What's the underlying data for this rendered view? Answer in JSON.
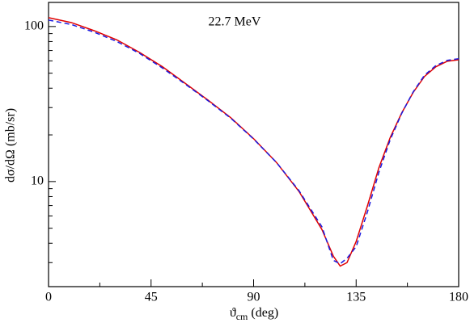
{
  "chart_data": {
    "type": "line",
    "annotation": "22.7 MeV",
    "xlabel": {
      "symbol": "ϑ",
      "subscript": "cm",
      "unit": "(deg)"
    },
    "ylabel": "dσ/dΩ (mb/sr)",
    "x": [
      0,
      10,
      20,
      30,
      40,
      50,
      60,
      70,
      80,
      90,
      100,
      110,
      120,
      125,
      128,
      131,
      135,
      140,
      145,
      150,
      155,
      160,
      165,
      170,
      175,
      180
    ],
    "series": [
      {
        "color": "#e00000",
        "linestyle": "solid",
        "values": [
          114,
          106,
          94,
          82,
          68,
          55,
          43,
          33.5,
          25.8,
          18.9,
          13.3,
          8.6,
          4.9,
          3.3,
          2.85,
          3.0,
          4.1,
          7.0,
          12.3,
          19.3,
          27.7,
          37.5,
          47.6,
          55,
          59.7,
          61
        ]
      },
      {
        "color": "#1a1ae0",
        "linestyle": "dashed",
        "values": [
          110,
          103,
          92,
          80,
          67,
          54,
          42.5,
          33.2,
          25.6,
          18.8,
          13.3,
          8.7,
          5.1,
          3.1,
          2.95,
          3.2,
          3.8,
          6.4,
          11.5,
          18.7,
          27.5,
          37.8,
          48.5,
          56,
          60.5,
          62
        ]
      }
    ],
    "xlim": [
      0,
      180
    ],
    "xticks": [
      0,
      45,
      90,
      135,
      180
    ],
    "x_minor_ticks": [
      22.5,
      67.5,
      112.5,
      157.5
    ],
    "ylim": [
      2.1,
      143
    ],
    "yscale": "log",
    "yticks": [
      10,
      100
    ],
    "y_minor_ticks": [
      3,
      4,
      5,
      6,
      7,
      8,
      9,
      20,
      30,
      40,
      50,
      60,
      70,
      80,
      90
    ]
  }
}
